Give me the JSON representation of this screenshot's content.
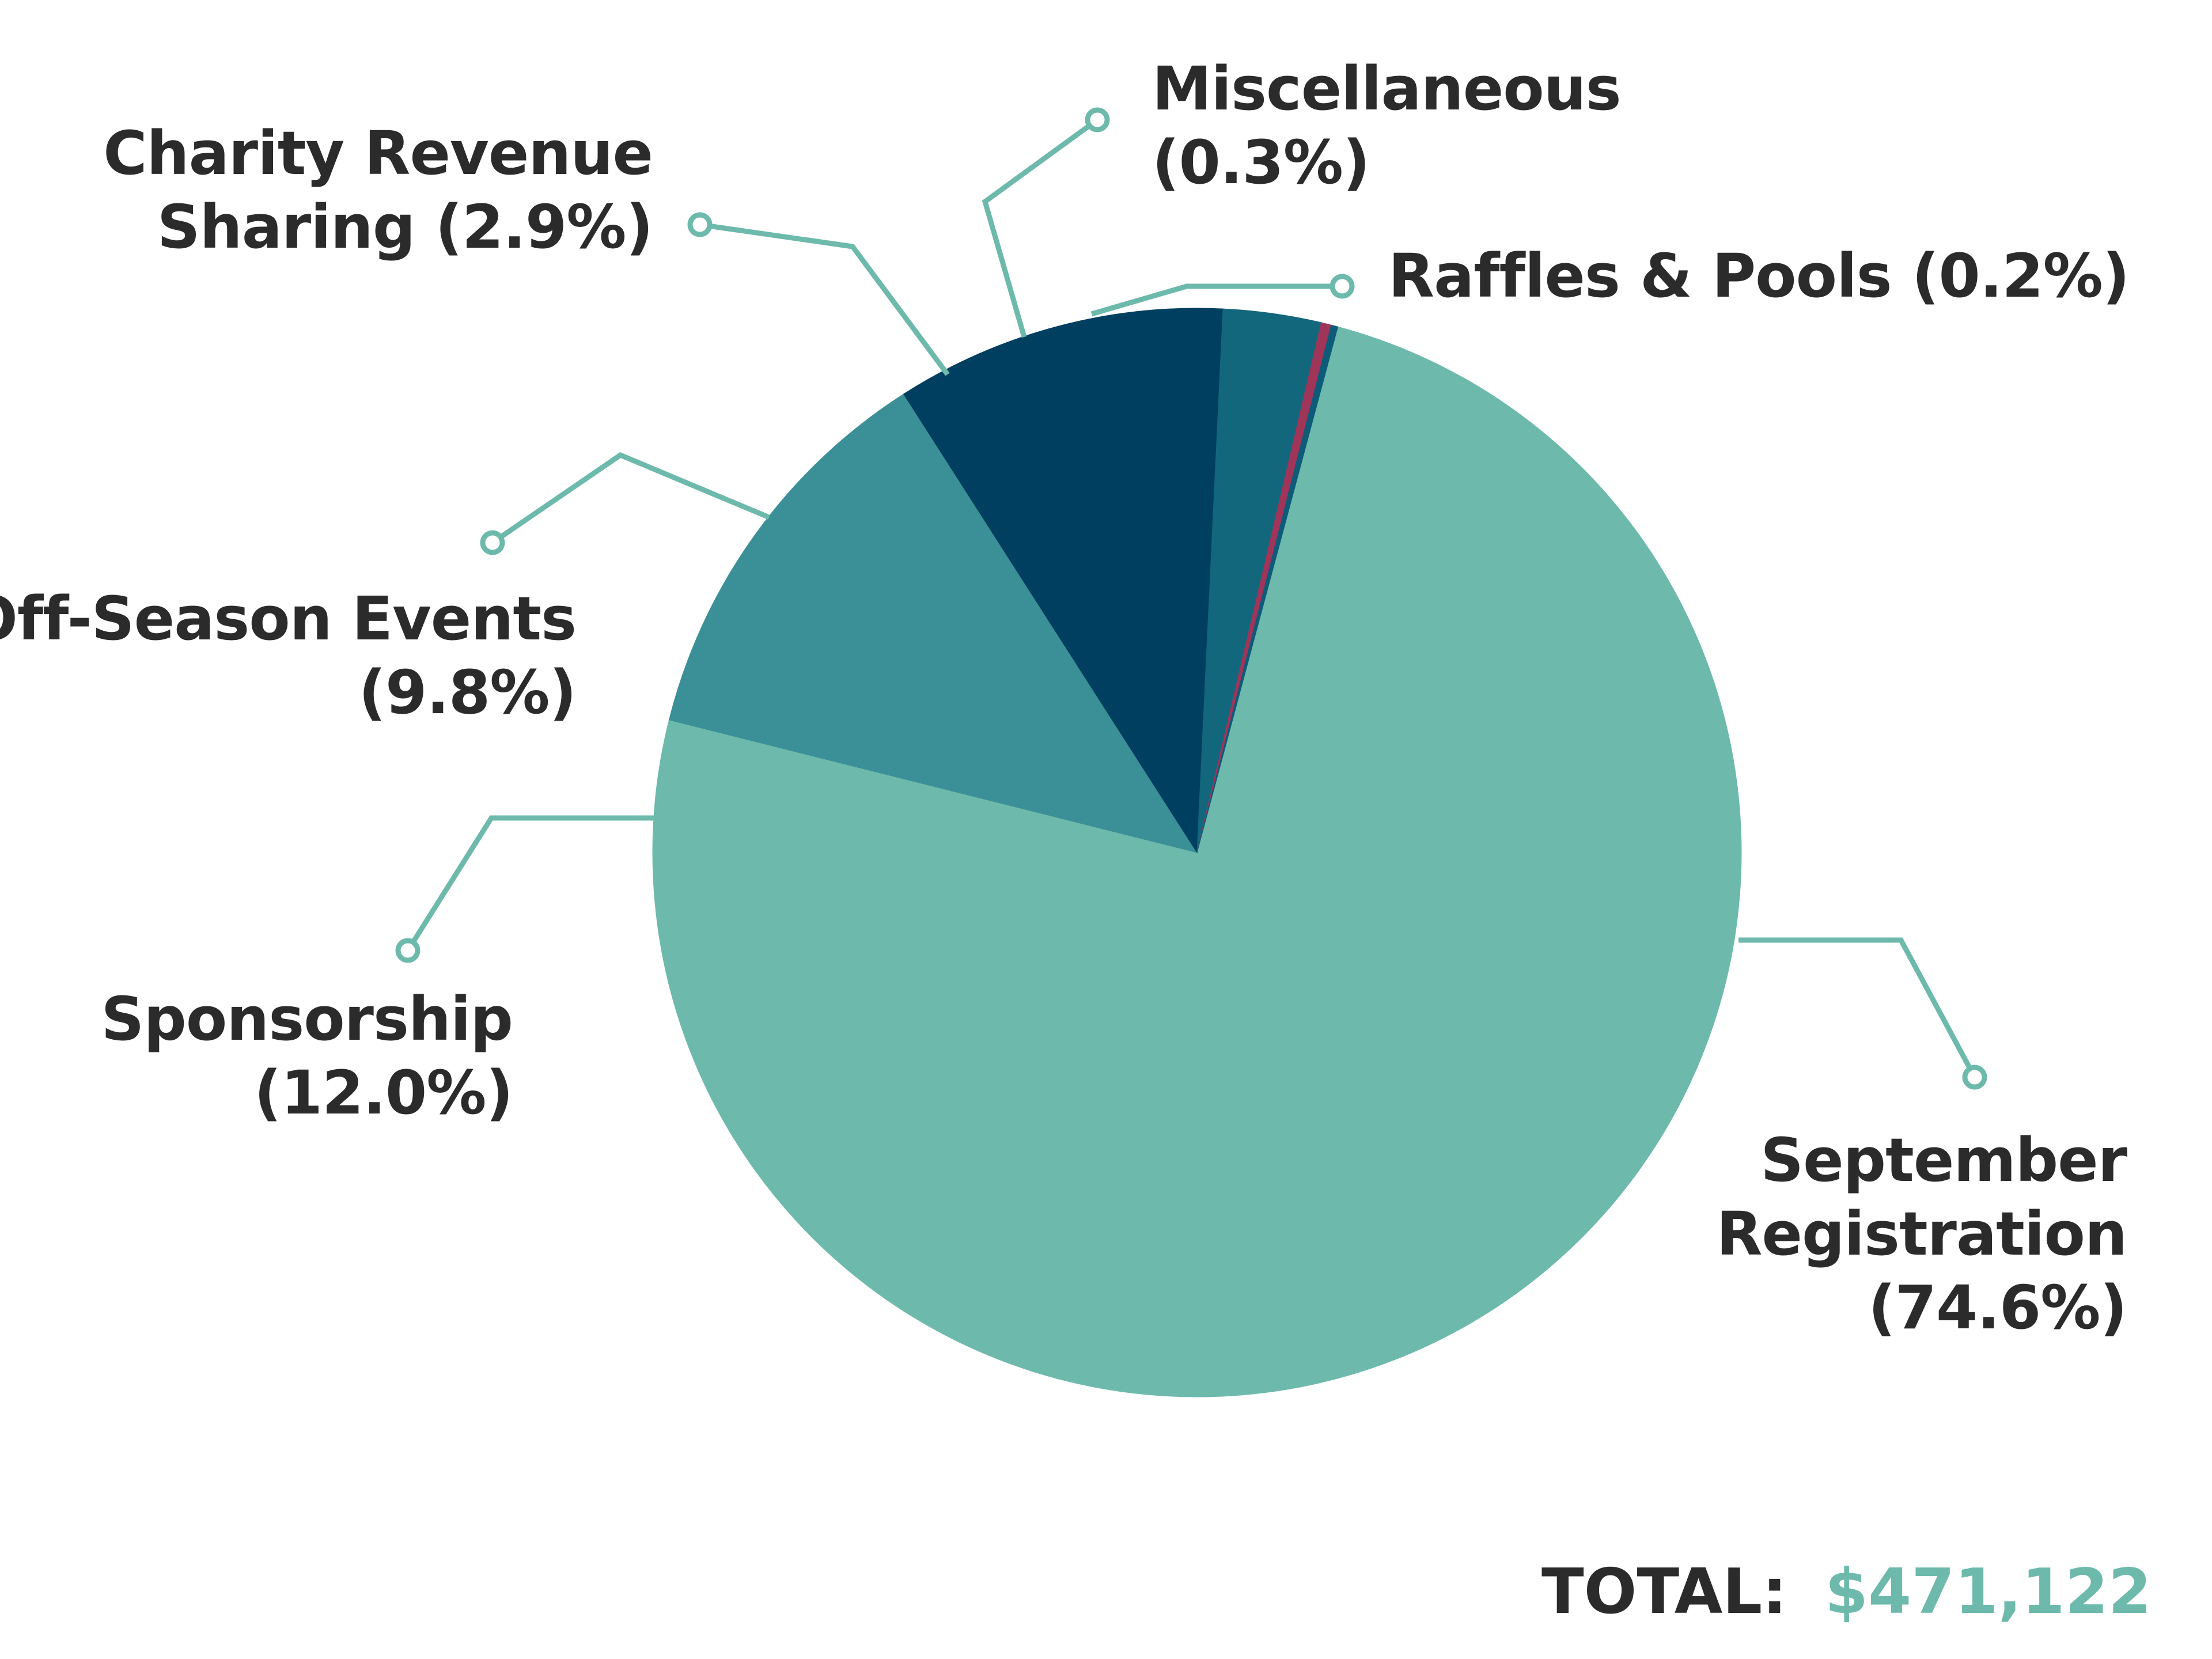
{
  "chart_data": {
    "type": "pie",
    "unit": "%",
    "slices": [
      {
        "name": "September Registration",
        "value": 74.6,
        "color": "#6dbaac",
        "label_lines": [
          "September",
          "Registration",
          "(74.6%)"
        ]
      },
      {
        "name": "Sponsorship",
        "value": 12.0,
        "color": "#3b9097",
        "label_lines": [
          "Sponsorship",
          "(12.0%)"
        ]
      },
      {
        "name": "Off-Season Events",
        "value": 9.8,
        "color": "#013f61",
        "label_lines": [
          "Off-Season Events",
          "(9.8%)"
        ]
      },
      {
        "name": "Charity Revenue Sharing",
        "value": 2.9,
        "color": "#12677c",
        "label_lines": [
          "Charity Revenue",
          "Sharing (2.9%)"
        ]
      },
      {
        "name": "Miscellaneous",
        "value": 0.3,
        "color": "#a0355a",
        "label_lines": [
          "Miscellaneous",
          "(0.3%)"
        ]
      },
      {
        "name": "Raffles & Pools",
        "value": 0.2,
        "color": "#0d5b78",
        "label_lines": [
          "Raffles & Pools (0.2%)"
        ]
      }
    ],
    "leader_color": "#6dbaac"
  },
  "total": {
    "label": "TOTAL:",
    "value": "$471,122",
    "label_color": "#2b2b2b",
    "value_color": "#6dbaac"
  }
}
